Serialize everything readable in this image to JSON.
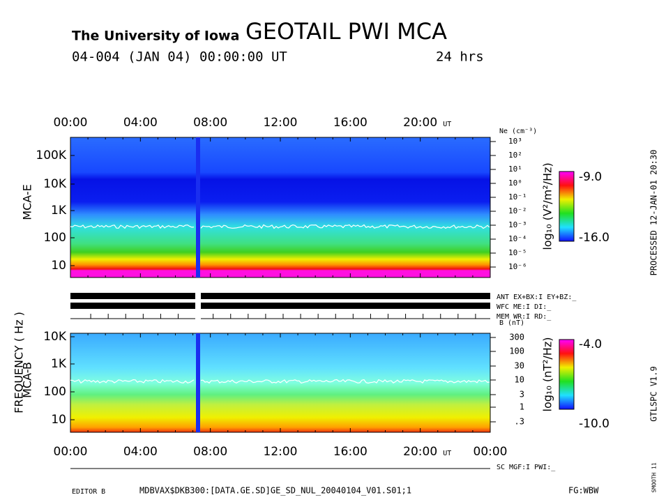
{
  "header": {
    "institution": "The University of Iowa",
    "title": "GEOTAIL PWI MCA",
    "date": "04-004 (JAN 04) 00:00:00 UT",
    "duration": "24 hrs"
  },
  "top_time_axis": {
    "labels": [
      "00:00",
      "04:00",
      "08:00",
      "12:00",
      "16:00",
      "20:00"
    ],
    "unit": "UT"
  },
  "bottom_time_axis": {
    "labels": [
      "00:00",
      "04:00",
      "08:00",
      "12:00",
      "16:00",
      "20:00",
      "00:00"
    ],
    "unit": "UT"
  },
  "frequency_label": "FREQUENCY ( Hz )",
  "mca_e": {
    "label": "MCA-E",
    "yticks": [
      "100K",
      "10K",
      "1K",
      "100",
      "10"
    ],
    "ne_label": "Ne (cm⁻³)",
    "ne_ticks": [
      "10³",
      "10²",
      "10¹",
      "10⁰",
      "10⁻¹",
      "10⁻²",
      "10⁻³",
      "10⁻⁴",
      "10⁻⁵",
      "10⁻⁶"
    ],
    "colorbar": {
      "label": "log₁₀ (V²/m²/Hz)",
      "max": "-9.0",
      "min": "-16.0"
    }
  },
  "status": [
    "ANT EX+BX:I EY+BZ:_",
    "WFC ME:I    DI:_",
    "MEM WR:I    RD:_"
  ],
  "mca_b": {
    "label": "MCA-B",
    "yticks": [
      "10K",
      "1K",
      "100",
      "10"
    ],
    "b_label": "B (nT)",
    "b_ticks": [
      "300",
      "100",
      "30",
      "10",
      "3",
      "1",
      ".3"
    ],
    "colorbar": {
      "label": "log₁₀ (nT²/Hz)",
      "max": "-4.0",
      "min": "-10.0"
    }
  },
  "footer": {
    "sc": "SC MGF:I   PWI:_",
    "editor": "EDITOR B",
    "file": "MDBVAX$DKB300:[DATA.GE.SD]GE_SD_NUL_20040104_V01.S01;1",
    "fg": "FG:WBW"
  },
  "side": {
    "processed": "PROCESSED 12-JAN-01  20:30",
    "version": "GTLSPC  V1.9",
    "smooth": "SMOOTH 11"
  }
}
